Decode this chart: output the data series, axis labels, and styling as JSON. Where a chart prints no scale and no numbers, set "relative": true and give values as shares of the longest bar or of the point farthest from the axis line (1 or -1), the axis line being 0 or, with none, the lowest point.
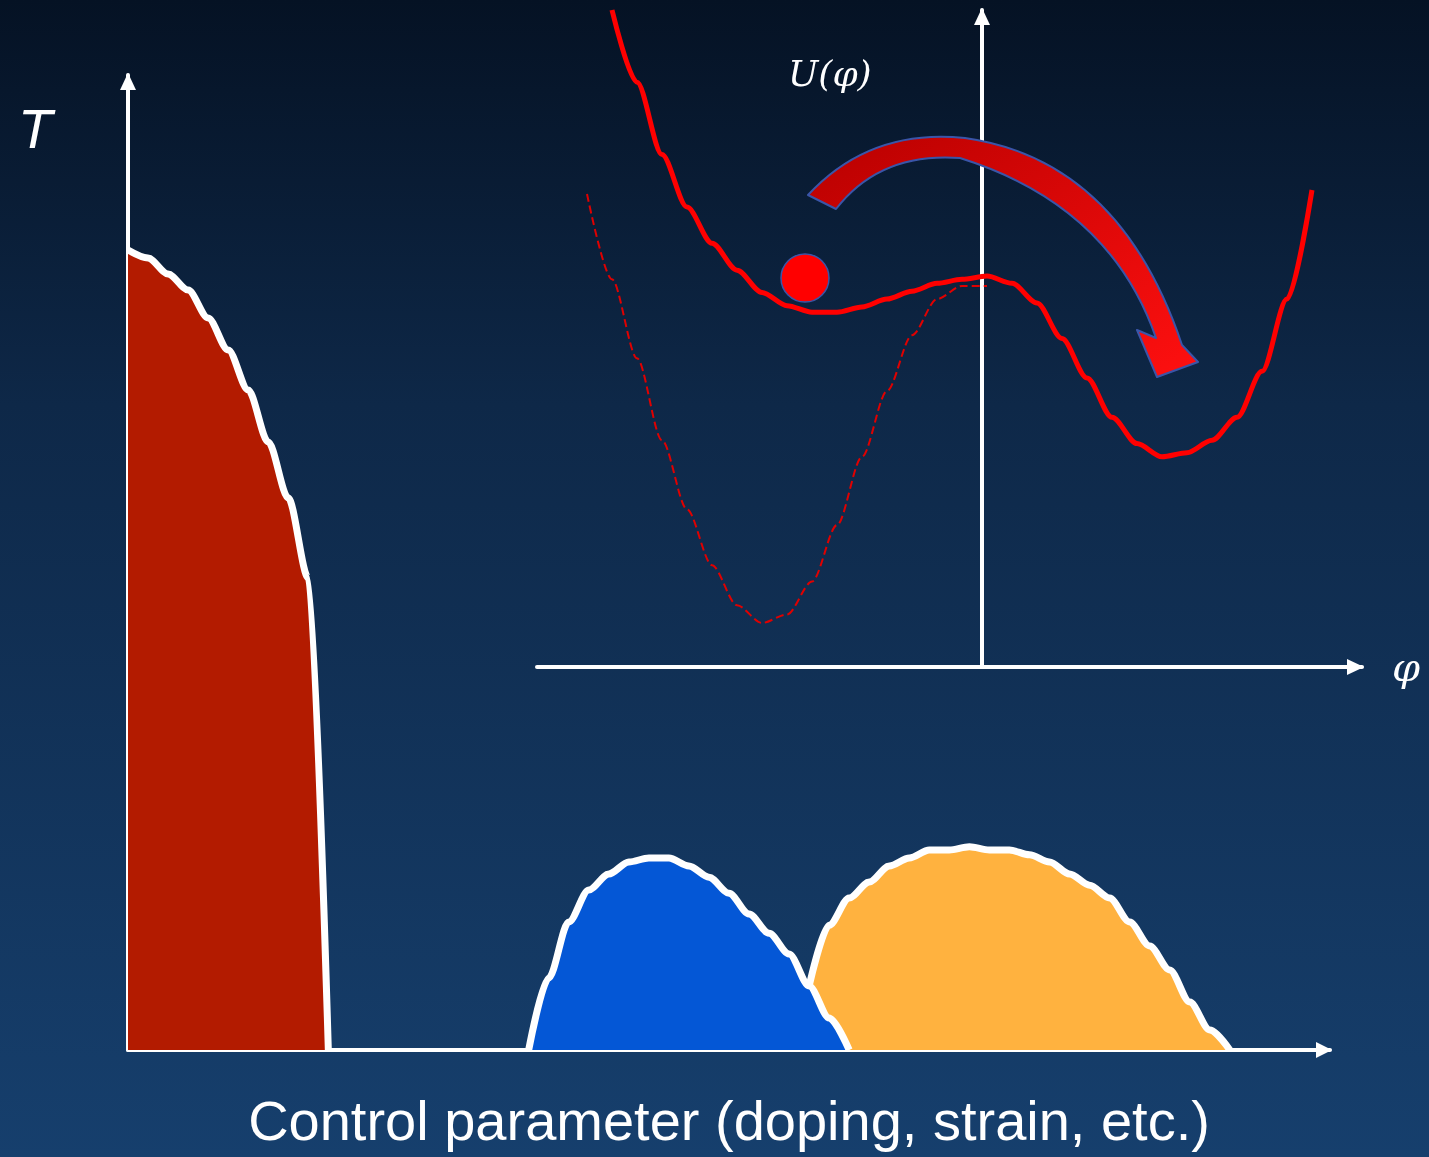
{
  "chart_data": [
    {
      "type": "area",
      "relative": true,
      "xlabel": "Control parameter (doping, strain, etc.)",
      "ylabel": "T",
      "categories": [
        null,
        null,
        null,
        null,
        null,
        null,
        null,
        null,
        null,
        null,
        null,
        null,
        null,
        null,
        null,
        null,
        null,
        null,
        null,
        null,
        null,
        null,
        null,
        null,
        null,
        null,
        null,
        null,
        null,
        null,
        null,
        null,
        null,
        null,
        null,
        null,
        null,
        null,
        null,
        null,
        null,
        null,
        null,
        null,
        null,
        null,
        null,
        null,
        null,
        null,
        null,
        null,
        null,
        null,
        null,
        null,
        null,
        null,
        null,
        null,
        null
      ],
      "series": [
        {
          "color": "#b31b00",
          "values": [
            1.0,
            0.99,
            0.97,
            0.95,
            0.915,
            0.875,
            0.825,
            0.76,
            0.69,
            0.59,
            0,
            null,
            null,
            null,
            null,
            null,
            null,
            null,
            null,
            null,
            null,
            null,
            null,
            null,
            null,
            null,
            null,
            null,
            null,
            null,
            null,
            null,
            null,
            null,
            null,
            null,
            null,
            null,
            null,
            null,
            null,
            null,
            null,
            null,
            null,
            null,
            null,
            null,
            null,
            null,
            null,
            null,
            null,
            null,
            null,
            null,
            null,
            null,
            null,
            null,
            null
          ]
        },
        {
          "color": "#ffb23f",
          "values": [
            null,
            null,
            null,
            null,
            null,
            null,
            null,
            null,
            null,
            null,
            null,
            null,
            null,
            null,
            null,
            null,
            null,
            null,
            null,
            null,
            null,
            null,
            null,
            null,
            null,
            null,
            null,
            null,
            null,
            null,
            null,
            null,
            null,
            null,
            0.08,
            0.156,
            0.19,
            0.21,
            0.23,
            0.24,
            0.25,
            0.25,
            0.254,
            0.25,
            0.25,
            0.244,
            0.235,
            0.22,
            0.206,
            0.19,
            0.16,
            0.13,
            0.1,
            0.06,
            0.025,
            0,
            null,
            null,
            null,
            null,
            null
          ]
        },
        {
          "color": "#0457d6",
          "values": [
            null,
            null,
            null,
            null,
            null,
            null,
            null,
            null,
            null,
            null,
            null,
            null,
            null,
            null,
            null,
            null,
            null,
            null,
            null,
            null,
            0,
            0.09,
            0.16,
            0.2,
            0.22,
            0.235,
            0.24,
            0.24,
            0.23,
            0.216,
            0.196,
            0.17,
            0.146,
            0.12,
            0.08,
            0.04,
            0,
            null,
            null,
            null,
            null,
            null,
            null,
            null,
            null,
            null,
            null,
            null,
            null,
            null,
            null,
            null,
            null,
            null,
            null,
            null,
            null,
            null,
            null,
            null,
            null
          ]
        }
      ]
    },
    {
      "type": "line",
      "relative": true,
      "xlabel": "φ",
      "ylabel": "U(φ)",
      "categories": [
        null,
        null,
        null,
        null,
        null,
        null,
        null,
        null,
        null,
        null,
        null,
        null,
        null,
        null,
        null,
        null,
        null,
        null,
        null,
        null,
        null,
        null,
        null,
        null,
        null,
        null,
        null,
        null,
        null,
        null,
        null,
        null,
        null,
        null
      ],
      "series": [
        {
          "color": "#ff0000",
          "line_style": "solid",
          "values": [
            null,
            null,
            null,
            1.0,
            0.89,
            0.78,
            0.7,
            0.645,
            0.604,
            0.57,
            0.55,
            0.54,
            0.54,
            0.548,
            0.56,
            0.572,
            0.584,
            0.59,
            0.595,
            0.584,
            0.554,
            0.5,
            0.44,
            0.38,
            0.34,
            0.32,
            0.326,
            0.345,
            0.38,
            0.45,
            0.56,
            0.726,
            null,
            null
          ]
        },
        {
          "color": "#e00000",
          "line_style": "dashed",
          "values": [
            null,
            null,
            0.72,
            0.59,
            0.47,
            0.345,
            0.24,
            0.155,
            0.094,
            0.067,
            0.08,
            0.13,
            0.216,
            0.32,
            0.42,
            0.505,
            0.56,
            0.58,
            0.58,
            null,
            null,
            null,
            null,
            null,
            null,
            null,
            null,
            null,
            null,
            null,
            null,
            null,
            null,
            null
          ]
        }
      ]
    }
  ]
}
